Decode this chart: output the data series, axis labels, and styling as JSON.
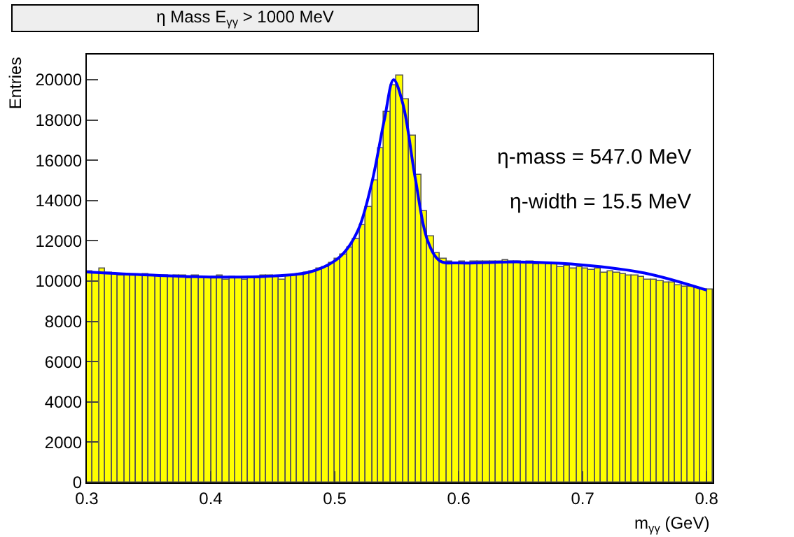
{
  "chart_data": {
    "type": "histogram",
    "title": "η Mass E$_{γγ}$ > 1000 MeV",
    "xlabel": "m$_{γγ}$ (GeV)",
    "ylabel": "Entries",
    "bins": [
      0.3,
      0.305,
      0.31,
      0.315,
      0.32,
      0.325,
      0.33,
      0.335,
      0.34,
      0.345,
      0.35,
      0.355,
      0.36,
      0.365,
      0.37,
      0.375,
      0.38,
      0.385,
      0.39,
      0.395,
      0.4,
      0.405,
      0.41,
      0.415,
      0.42,
      0.425,
      0.43,
      0.435,
      0.44,
      0.445,
      0.45,
      0.455,
      0.46,
      0.465,
      0.47,
      0.475,
      0.48,
      0.485,
      0.49,
      0.495,
      0.5,
      0.505,
      0.51,
      0.515,
      0.52,
      0.525,
      0.53,
      0.535,
      0.54,
      0.545,
      0.55,
      0.555,
      0.56,
      0.565,
      0.57,
      0.575,
      0.58,
      0.585,
      0.59,
      0.595,
      0.6,
      0.605,
      0.61,
      0.615,
      0.62,
      0.625,
      0.63,
      0.635,
      0.64,
      0.645,
      0.65,
      0.655,
      0.66,
      0.665,
      0.67,
      0.675,
      0.68,
      0.685,
      0.69,
      0.695,
      0.7,
      0.705,
      0.71,
      0.715,
      0.72,
      0.725,
      0.73,
      0.735,
      0.74,
      0.745,
      0.75,
      0.755,
      0.76,
      0.765,
      0.77,
      0.775,
      0.78,
      0.785,
      0.79,
      0.795,
      0.8,
      0.805
    ],
    "series": [
      {
        "type": "histogram",
        "color": "#ffff00",
        "values": [
          10500,
          10450,
          10600,
          10400,
          10350,
          10300,
          10350,
          10300,
          10250,
          10350,
          10300,
          10250,
          10300,
          10200,
          10250,
          10300,
          10150,
          10250,
          10200,
          10150,
          10200,
          10250,
          10100,
          10200,
          10150,
          10050,
          10200,
          10150,
          10250,
          10300,
          10200,
          10100,
          10250,
          10300,
          10350,
          10400,
          10500,
          10600,
          10700,
          10900,
          11100,
          11300,
          11700,
          12100,
          12800,
          13700,
          15000,
          16600,
          18400,
          19700,
          20200,
          19000,
          17200,
          15300,
          13500,
          12200,
          11400,
          11100,
          10950,
          10900,
          10950,
          10900,
          11000,
          10950,
          11000,
          10950,
          11000,
          11050,
          10950,
          11000,
          10900,
          10950,
          10850,
          10900,
          10800,
          10850,
          10700,
          10750,
          10650,
          10700,
          10600,
          10550,
          10600,
          10450,
          10500,
          10400,
          10350,
          10300,
          10250,
          10200,
          10100,
          10050,
          10000,
          9950,
          9900,
          9800,
          9750,
          9700,
          9650,
          9600,
          9550
        ]
      },
      {
        "type": "line",
        "color": "#0000ff",
        "x": [
          0.3,
          0.35,
          0.4,
          0.45,
          0.48,
          0.5,
          0.51,
          0.52,
          0.53,
          0.54,
          0.5475,
          0.555,
          0.565,
          0.575,
          0.585,
          0.6,
          0.65,
          0.7,
          0.75,
          0.8
        ],
        "values": [
          10450,
          10300,
          10200,
          10250,
          10450,
          11000,
          11600,
          12700,
          14900,
          18000,
          20000,
          18800,
          15100,
          12000,
          11000,
          10900,
          10950,
          10800,
          10400,
          9550
        ]
      }
    ],
    "annotations": [
      "η-mass = 547.0 MeV",
      "η-width = 15.5 MeV"
    ],
    "xlim": [
      0.3,
      0.805
    ],
    "xticks": [
      0.3,
      0.4,
      0.5,
      0.6,
      0.7,
      0.8
    ],
    "ylim": [
      0,
      21250
    ],
    "yticks": [
      0,
      2000,
      4000,
      6000,
      8000,
      10000,
      12000,
      14000,
      16000,
      18000,
      20000
    ],
    "grid": false
  }
}
